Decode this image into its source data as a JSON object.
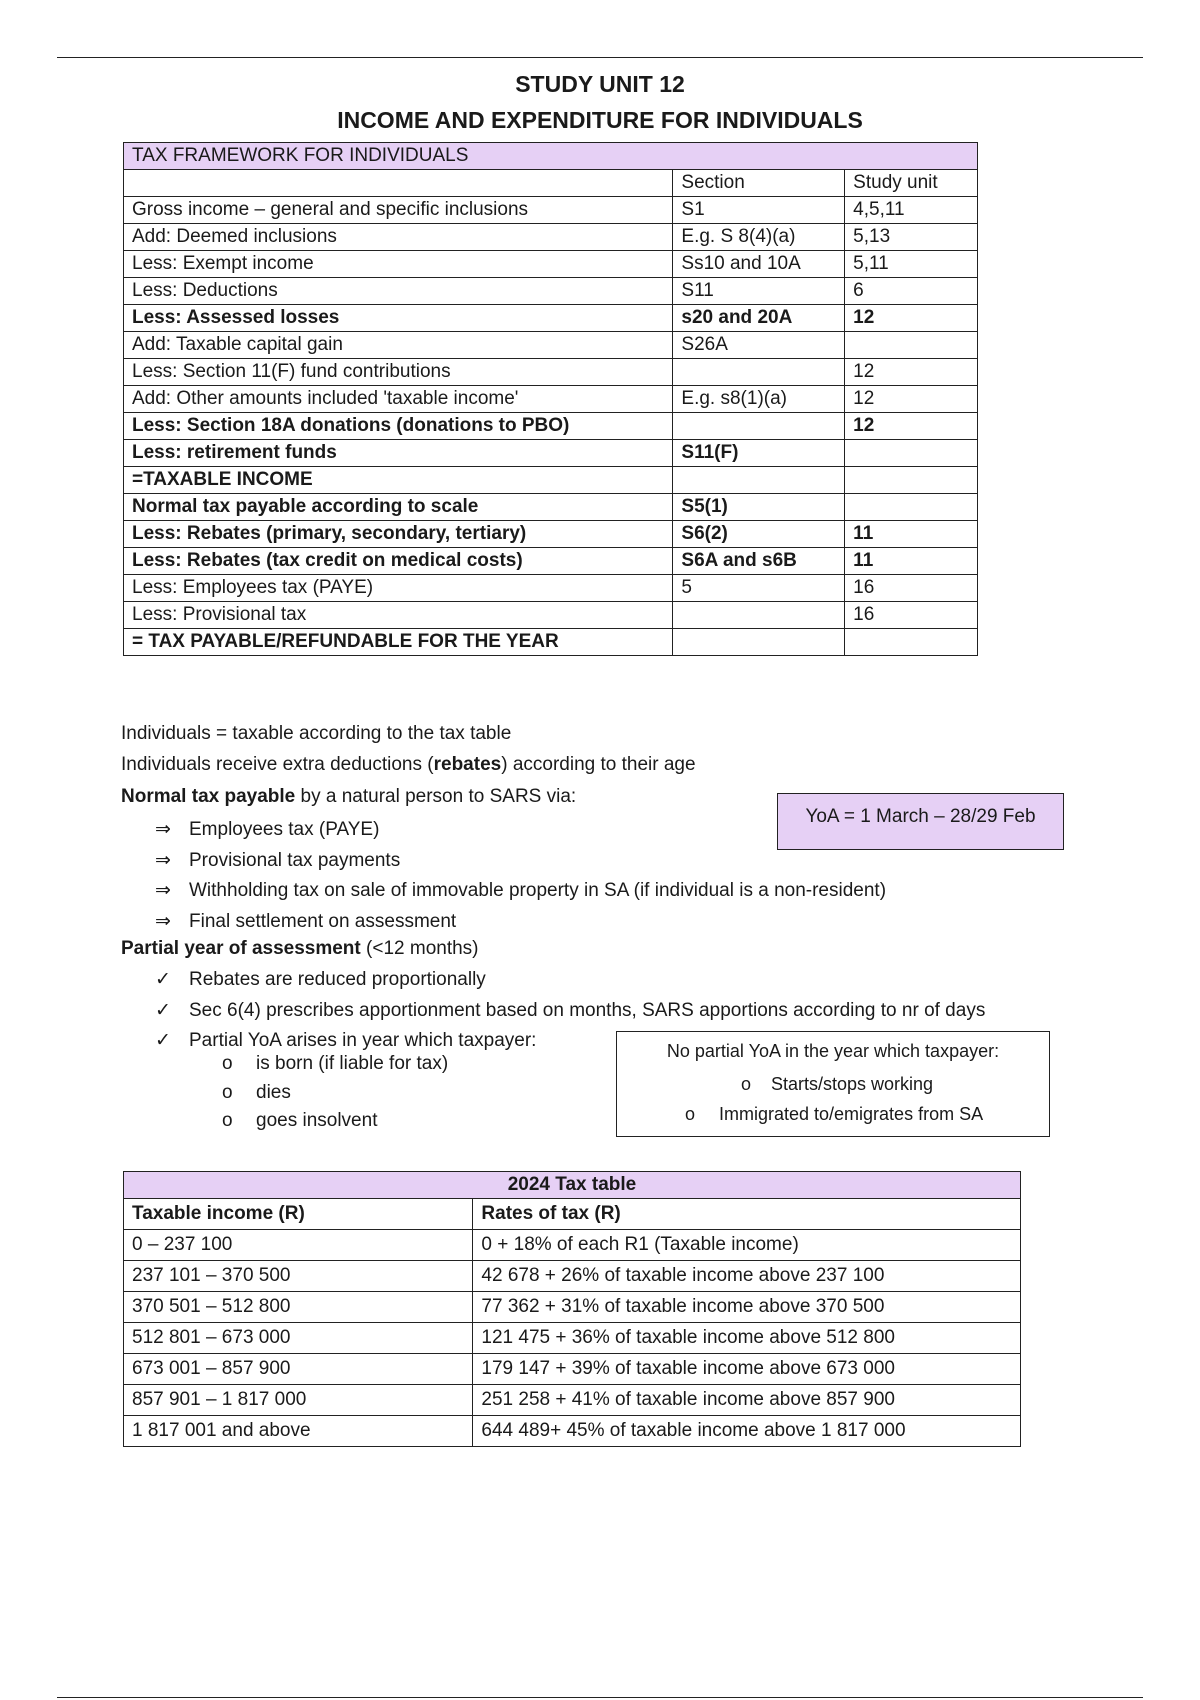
{
  "header": {
    "title": "STUDY UNIT 12",
    "subtitle": "INCOME AND EXPENDITURE FOR INDIVIDUALS"
  },
  "framework": {
    "title": "TAX FRAMEWORK FOR INDIVIDUALS",
    "columns": [
      "",
      "Section",
      "Study unit"
    ],
    "rows": [
      {
        "item": "Gross income – general and specific inclusions",
        "section": "S1",
        "unit": "4,5,11",
        "bold": false
      },
      {
        "item": "Add: Deemed inclusions",
        "section": "E.g. S 8(4)(a)",
        "unit": "5,13",
        "bold": false
      },
      {
        "item": "Less: Exempt income",
        "section": "Ss10 and 10A",
        "unit": "5,11",
        "bold": false
      },
      {
        "item": "Less: Deductions",
        "section": "S11",
        "unit": "6",
        "bold": false
      },
      {
        "item": "Less:  Assessed losses",
        "section": "s20 and 20A",
        "unit": "12",
        "bold": true
      },
      {
        "item": "Add:  Taxable capital gain",
        "section": "S26A",
        "unit": "",
        "bold": false
      },
      {
        "item": "Less:  Section 11(F) fund contributions",
        "section": "",
        "unit": "12",
        "bold": false
      },
      {
        "item": "Add:  Other amounts included 'taxable income'",
        "section": "E.g. s8(1)(a)",
        "unit": "12",
        "bold": false
      },
      {
        "item": "Less:  Section 18A donations (donations to PBO)",
        "section": "",
        "unit": "12",
        "bold": true
      },
      {
        "item": "Less: retirement funds",
        "section": "S11(F)",
        "unit": "",
        "bold": true
      },
      {
        "item": "=TAXABLE INCOME",
        "section": "",
        "unit": "",
        "bold": true
      },
      {
        "item": "Normal tax payable according to scale",
        "section": "S5(1)",
        "unit": "",
        "bold": true
      },
      {
        "item": "Less:  Rebates (primary, secondary, tertiary)",
        "section": "S6(2)",
        "unit": "11",
        "bold": true
      },
      {
        "item": "Less:  Rebates (tax credit on medical costs)",
        "section": "S6A and s6B",
        "unit": "11",
        "bold": true
      },
      {
        "item": "Less:  Employees tax (PAYE)",
        "section": "5",
        "unit": "16",
        "bold": false
      },
      {
        "item": "Less:  Provisional tax",
        "section": "",
        "unit": "16",
        "bold": false
      },
      {
        "item": "= TAX PAYABLE/REFUNDABLE FOR THE YEAR",
        "section": "",
        "unit": "",
        "bold": true
      }
    ]
  },
  "notes": {
    "line1": "Individuals = taxable according to the tax table",
    "line2_pre": "Individuals receive extra deductions (",
    "line2_bold": "rebates",
    "line2_post": ") according to their age",
    "line3_bold": "Normal tax payable",
    "line3_post": " by a natural person to SARS via:",
    "arrow_items": [
      "Employees tax (PAYE)",
      "Provisional tax payments",
      "Withholding tax on sale of immovable property in SA (if individual is a non-resident)",
      "Final settlement on assessment"
    ],
    "partial_bold": "Partial year of assessment",
    "partial_post": " (<12 months)",
    "check_items": [
      "Rebates are reduced proportionally",
      "Sec 6(4) prescribes apportionment based on months, SARS apportions according to nr of days",
      "Partial YoA arises in year which taxpayer:"
    ],
    "sub_items": [
      "is born (if liable for tax)",
      "dies",
      "goes insolvent"
    ],
    "arrow_glyph": "⇒",
    "check_glyph": "✓",
    "circle_glyph": "o"
  },
  "yoa_box": {
    "text": "YoA = 1 March – 28/29 Feb",
    "color": "#e6d0f5"
  },
  "no_partial_box": {
    "title": "No partial YoA in the year which taxpayer:",
    "items": [
      "Starts/stops working",
      "Immigrated to/emigrates from SA"
    ]
  },
  "tax_table": {
    "title": "2024 Tax table",
    "columns": [
      "Taxable income (R)",
      "Rates of tax (R)"
    ],
    "rows": [
      [
        "0 – 237 100",
        "0 + 18% of each R1 (Taxable income)"
      ],
      [
        "237 101 – 370 500",
        "42 678 + 26% of taxable income above 237 100"
      ],
      [
        "370 501 – 512 800",
        "77 362 + 31% of taxable income above 370 500"
      ],
      [
        "512 801 – 673 000",
        "121 475 + 36% of taxable income above 512 800"
      ],
      [
        "673 001 – 857 900",
        "179 147 + 39% of taxable income above 673 000"
      ],
      [
        "857 901 – 1 817 000",
        "251 258 + 41% of taxable income above 857 900"
      ],
      [
        "1 817 001 and above",
        "644 489+ 45% of taxable income above 1 817 000"
      ]
    ]
  }
}
